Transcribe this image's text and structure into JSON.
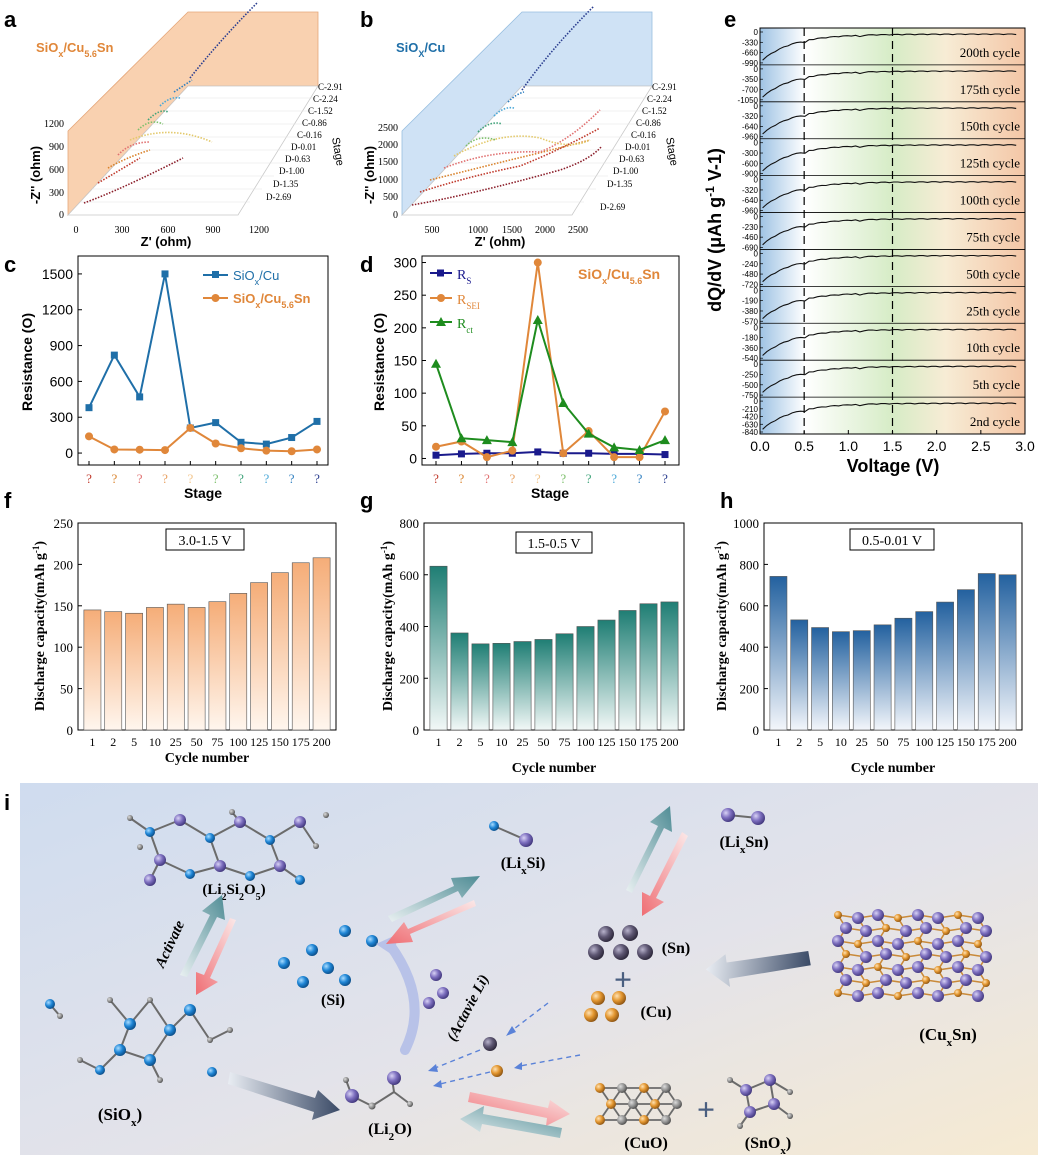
{
  "panels": {
    "a": {
      "letter": "a",
      "label_html": "SiO<tspan baseline-shift='sub' font-size='9'>x</tspan>/Cu<tspan baseline-shift='sub' font-size='9'>5.6</tspan>Sn"
    },
    "b": {
      "letter": "b"
    },
    "c": {
      "letter": "c"
    },
    "d": {
      "letter": "d"
    },
    "e": {
      "letter": "e"
    },
    "f": {
      "letter": "f"
    },
    "g": {
      "letter": "g"
    },
    "h": {
      "letter": "h"
    },
    "i": {
      "letter": "i"
    }
  },
  "colors": {
    "blue": "#1f6fa8",
    "orange": "#e0873a",
    "navy": "#1a1a8c",
    "green": "#1e8c1e",
    "teal": "#2e8b7a",
    "peach": "#f7b887"
  },
  "chart_data": [
    {
      "id": "a",
      "type": "line",
      "title": "SiOx/Cu5.6Sn",
      "xlabel": "Z' (ohm)",
      "ylabel": "-Z'' (ohm)",
      "zlabel": "Stage",
      "x_ticks": [
        "0",
        "300",
        "600",
        "900",
        "1200"
      ],
      "y_ticks": [
        "0",
        "300",
        "600",
        "900",
        "1200"
      ],
      "stages": [
        "C-2.91",
        "C-2.24",
        "C-1.52",
        "C-0.86",
        "C-0.16",
        "D-0.01",
        "D-0.63",
        "D-1.00",
        "D-1.35",
        "D-2.69"
      ]
    },
    {
      "id": "b",
      "type": "line",
      "title": "SiOx/Cu",
      "xlabel": "Z' (ohm)",
      "ylabel": "-Z'' (ohm)",
      "zlabel": "Stage",
      "x_ticks": [
        "500",
        "1000",
        "1500",
        "2000",
        "2500"
      ],
      "y_ticks": [
        "0",
        "500",
        "1000",
        "1500",
        "2000",
        "2500"
      ],
      "stages": [
        "C-2.91",
        "C-2.24",
        "C-1.52",
        "C-0.86",
        "C-0.16",
        "D-0.01",
        "D-0.63",
        "D-1.00",
        "D-1.35",
        "D-2.69"
      ]
    },
    {
      "id": "c",
      "type": "line",
      "xlabel": "Stage",
      "ylabel": "Resistance (O)",
      "ylim": [
        -100,
        1650
      ],
      "y_ticks": [
        0,
        300,
        600,
        900,
        1200,
        1500
      ],
      "categories": [
        "?",
        "?",
        "?",
        "?",
        "?",
        "?",
        "?",
        "?",
        "?",
        "?"
      ],
      "category_colors": [
        "#c0392b",
        "#d9822b",
        "#e07070",
        "#e8a060",
        "#f2c48a",
        "#7bbf6a",
        "#3fa37a",
        "#4aa8d8",
        "#2f7fc0",
        "#2a3d8f"
      ],
      "series": [
        {
          "name": "SiOx/Cu",
          "color": "#1f6fa8",
          "marker": "square",
          "values": [
            380,
            820,
            470,
            1500,
            210,
            255,
            90,
            75,
            130,
            265
          ]
        },
        {
          "name": "SiOx/Cu5.6Sn",
          "color": "#e0873a",
          "marker": "circle",
          "values": [
            140,
            30,
            28,
            25,
            210,
            80,
            40,
            20,
            15,
            30
          ]
        }
      ]
    },
    {
      "id": "d",
      "type": "line",
      "title": "SiOx/Cu5.6Sn",
      "xlabel": "Stage",
      "ylabel": "Resistance (O)",
      "ylim": [
        -10,
        310
      ],
      "y_ticks": [
        0,
        50,
        100,
        150,
        200,
        250,
        300
      ],
      "categories": [
        "?",
        "?",
        "?",
        "?",
        "?",
        "?",
        "?",
        "?",
        "?",
        "?"
      ],
      "category_colors": [
        "#c0392b",
        "#d9822b",
        "#e07070",
        "#e8a060",
        "#f2c48a",
        "#7bbf6a",
        "#3fa37a",
        "#4aa8d8",
        "#2f7fc0",
        "#2a3d8f"
      ],
      "series": [
        {
          "name": "RS",
          "color": "#1a1a8c",
          "marker": "square",
          "values": [
            5,
            7,
            8,
            8,
            10,
            8,
            8,
            7,
            7,
            6
          ]
        },
        {
          "name": "RSEI",
          "color": "#e0873a",
          "marker": "circle",
          "values": [
            18,
            26,
            2,
            12,
            300,
            8,
            42,
            2,
            2,
            72
          ]
        },
        {
          "name": "Rct",
          "color": "#1e8c1e",
          "marker": "triangle",
          "values": [
            145,
            31,
            28,
            25,
            212,
            85,
            38,
            17,
            13,
            28
          ]
        }
      ]
    },
    {
      "id": "e",
      "type": "line",
      "xlabel": "Voltage (V)",
      "ylabel": "dQ/dV (μAh g-1 V-1)",
      "xlim": [
        0.0,
        3.0
      ],
      "x_ticks": [
        "0.0",
        "0.5",
        "1.0",
        "1.5",
        "2.0",
        "2.5",
        "3.0"
      ],
      "dashed_lines_x": [
        0.5,
        1.5
      ],
      "stacks": [
        {
          "label": "200th cycle",
          "ticks": [
            "0",
            "-330",
            "-660",
            "-990"
          ]
        },
        {
          "label": "175th cycle",
          "ticks": [
            "0",
            "-350",
            "-700",
            "-1050"
          ]
        },
        {
          "label": "150th cycle",
          "ticks": [
            "0",
            "-320",
            "-640",
            "-960"
          ]
        },
        {
          "label": "125th cycle",
          "ticks": [
            "0",
            "-300",
            "-600",
            "-900"
          ]
        },
        {
          "label": "100th cycle",
          "ticks": [
            "0",
            "-320",
            "-640",
            "-960"
          ]
        },
        {
          "label": "75th cycle",
          "ticks": [
            "0",
            "-230",
            "-460",
            "-690"
          ]
        },
        {
          "label": "50th cycle",
          "ticks": [
            "0",
            "-240",
            "-480",
            "-720"
          ]
        },
        {
          "label": "25th cycle",
          "ticks": [
            "0",
            "-190",
            "-380",
            "-570"
          ]
        },
        {
          "label": "10th cycle",
          "ticks": [
            "0",
            "-180",
            "-360",
            "-540"
          ]
        },
        {
          "label": "5th cycle",
          "ticks": [
            "0",
            "-250",
            "-500",
            "-750"
          ]
        },
        {
          "label": "2nd cycle",
          "ticks": [
            "0",
            "-210",
            "-420",
            "-630",
            "-840"
          ]
        }
      ]
    },
    {
      "id": "f",
      "type": "bar",
      "title": "3.0-1.5 V",
      "xlabel": "Cycle number",
      "ylabel": "Discharge capacity(mAh g-1)",
      "ylim": [
        0,
        250
      ],
      "y_ticks": [
        0,
        50,
        100,
        150,
        200,
        250
      ],
      "categories": [
        "1",
        "2",
        "5",
        "10",
        "25",
        "50",
        "75",
        "100",
        "125",
        "150",
        "175",
        "200"
      ],
      "values": [
        145,
        143,
        141,
        148,
        152,
        148,
        155,
        165,
        178,
        190,
        202,
        208
      ]
    },
    {
      "id": "g",
      "type": "bar",
      "title": "1.5-0.5 V",
      "xlabel": "Cycle number",
      "ylabel": "Discharge capacity(mAh g-1)",
      "ylim": [
        0,
        800
      ],
      "y_ticks": [
        0,
        200,
        400,
        600,
        800
      ],
      "categories": [
        "1",
        "2",
        "5",
        "10",
        "25",
        "50",
        "75",
        "100",
        "125",
        "150",
        "175",
        "200"
      ],
      "values": [
        633,
        375,
        333,
        335,
        342,
        350,
        372,
        400,
        425,
        462,
        488,
        495
      ]
    },
    {
      "id": "h",
      "type": "bar",
      "title": "0.5-0.01 V",
      "xlabel": "Cycle number",
      "ylabel": "Discharge capacity(mAh g-1)",
      "ylim": [
        0,
        1000
      ],
      "y_ticks": [
        0,
        200,
        400,
        600,
        800,
        1000
      ],
      "categories": [
        "1",
        "2",
        "5",
        "10",
        "25",
        "50",
        "75",
        "100",
        "125",
        "150",
        "175",
        "200"
      ],
      "values": [
        742,
        532,
        495,
        475,
        480,
        508,
        540,
        572,
        618,
        678,
        756,
        750
      ]
    }
  ],
  "schematic": {
    "labels": [
      "(Li2Si2O5)",
      "(LixSi)",
      "(LixSn)",
      "Activate",
      "(Si)",
      "(Actavie Li)",
      "(Sn)",
      "(Cu)",
      "(CuxSn)",
      "(SiOx)",
      "(Li2O)",
      "(CuO)",
      "(SnOx)"
    ]
  }
}
